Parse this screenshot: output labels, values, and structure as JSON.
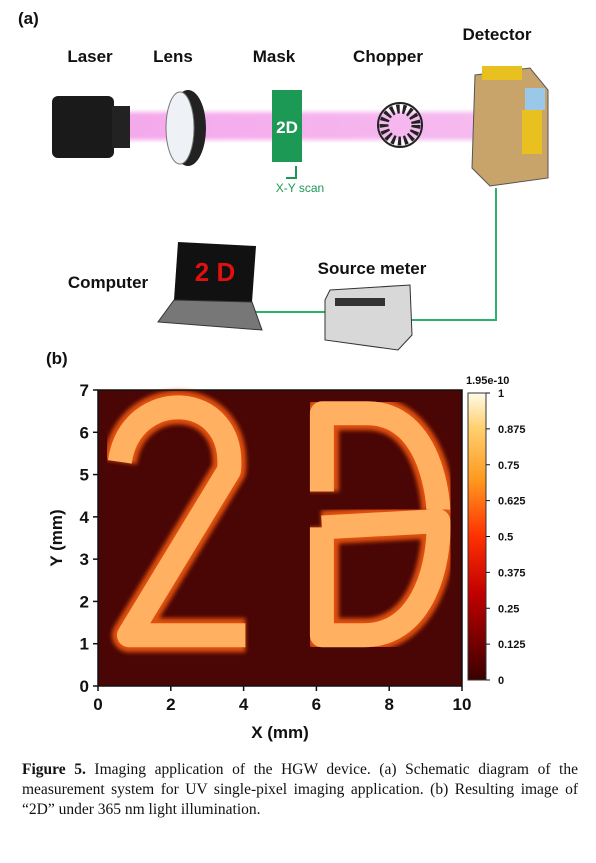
{
  "panel_a": {
    "label": "(a)",
    "components": {
      "laser": "Laser",
      "lens": "Lens",
      "mask": "Mask",
      "chopper": "Chopper",
      "detector": "Detector",
      "computer": "Computer",
      "source_meter": "Source meter"
    },
    "mask_text": "2D",
    "scan_label": "X-Y scan",
    "screen_text": "2 D"
  },
  "panel_b": {
    "label": "(b)",
    "xlabel": "X (mm)",
    "ylabel": "Y (mm)",
    "xlim": [
      0,
      10
    ],
    "ylim": [
      0,
      7
    ],
    "xticks": [
      0,
      2,
      4,
      6,
      8,
      10
    ],
    "yticks": [
      0,
      1,
      2,
      3,
      4,
      5,
      6,
      7
    ],
    "colorbar": {
      "max_label": "1.95e-10",
      "lim": [
        0,
        1
      ],
      "ticks": [
        0,
        0.125,
        0.25,
        0.375,
        0.5,
        0.625,
        0.75,
        0.875,
        1
      ]
    }
  },
  "caption": {
    "label": "Figure 5.",
    "text": "Imaging application of the HGW device. (a) Schematic diagram of the measurement system for UV single-pixel imaging application. (b) Resulting image of “2D” under 365 nm light illumination."
  }
}
